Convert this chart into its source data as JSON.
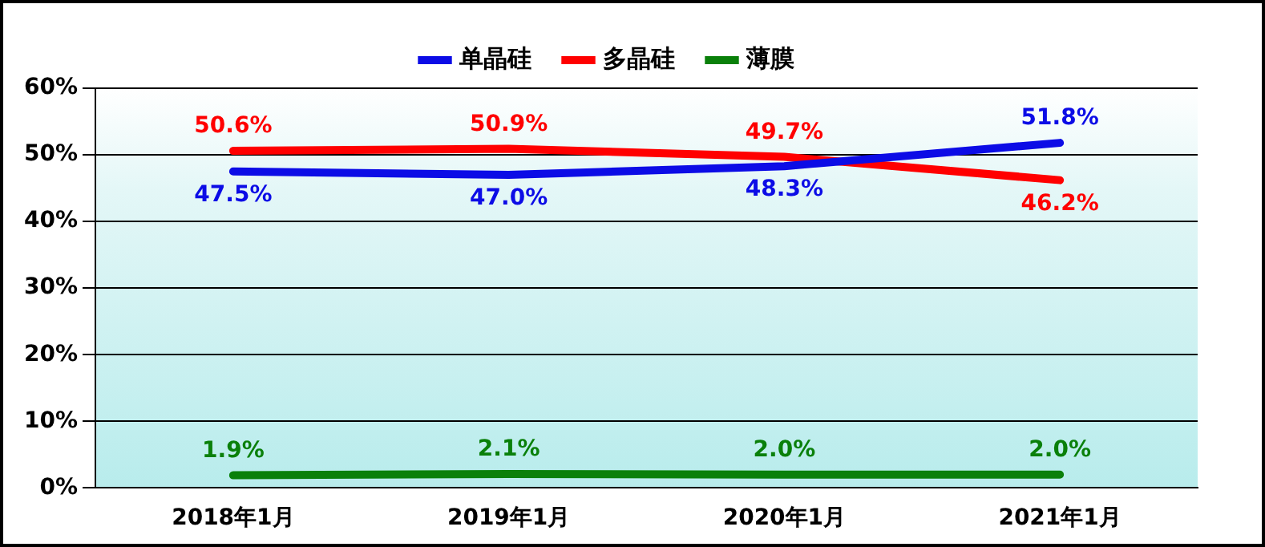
{
  "chart_data": {
    "type": "line",
    "categories": [
      "2018年1月",
      "2019年1月",
      "2020年1月",
      "2021年1月"
    ],
    "series": [
      {
        "name": "单晶硅",
        "color": "#0c0ce6",
        "values": [
          47.5,
          47.0,
          48.3,
          51.8
        ],
        "value_labels": [
          "47.5%",
          "47.0%",
          "48.3%",
          "51.8%"
        ]
      },
      {
        "name": "多晶硅",
        "color": "#ff0000",
        "values": [
          50.6,
          50.9,
          49.7,
          46.2
        ],
        "value_labels": [
          "50.6%",
          "50.9%",
          "49.7%",
          "46.2%"
        ]
      },
      {
        "name": "薄膜",
        "color": "#0a800a",
        "values": [
          1.9,
          2.1,
          2.0,
          2.0
        ],
        "value_labels": [
          "1.9%",
          "2.1%",
          "2.0%",
          "2.0%"
        ]
      }
    ],
    "ylim": [
      0,
      60
    ],
    "yticks": [
      {
        "value": 0,
        "label": "0%"
      },
      {
        "value": 10,
        "label": "10%"
      },
      {
        "value": 20,
        "label": "20%"
      },
      {
        "value": 30,
        "label": "30%"
      },
      {
        "value": 40,
        "label": "40%"
      },
      {
        "value": 50,
        "label": "50%"
      },
      {
        "value": 60,
        "label": "60%"
      }
    ],
    "grid": "y",
    "legend": "top",
    "marker": "none",
    "line_style": "solid"
  }
}
